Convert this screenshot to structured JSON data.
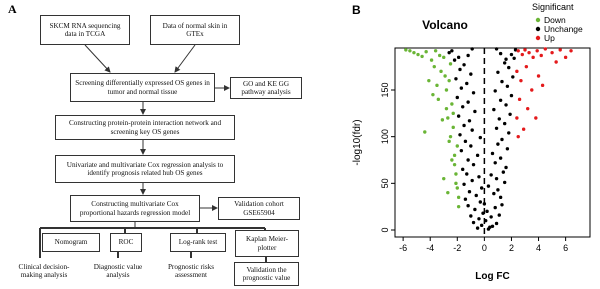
{
  "panel_a": {
    "label": "A",
    "nodes": [
      "SKCM RNA sequencing data in TCGA",
      "Data of normal skin in GTEx",
      "Screening differentially expressed OS genes in tumor and normal tissue",
      "GO and KE GG pathway analysis",
      "Constructing protein-protein interaction network and screening key OS genes",
      "Univariate and multivariate Cox regression analysis to identify prognosis related hub OS genes",
      "Constructing multivariate Cox proportional hazards regression model",
      "Validation cohort GSE65904",
      "Nomogram",
      "ROC",
      "Log-rank test",
      "Kaplan Meier-plotter",
      "Clinical decision-making analysis",
      "Diagnostic value analysis",
      "Prognostic risks assessment",
      "Validation the prognostic value"
    ]
  },
  "chart_data": {
    "type": "scatter",
    "panel_label": "B",
    "title": "Volcano",
    "x_label": "Log FC",
    "y_label": "-log10(fdr)",
    "legend_title": "Significant",
    "legend": "top-right",
    "vline": 0,
    "xlim": [
      -6.6,
      7.8
    ],
    "xticks": [
      -6,
      -4,
      -2,
      0,
      2,
      4,
      6
    ],
    "ylim": [
      -7.5,
      195
    ],
    "yticks": [
      0,
      50,
      100,
      150
    ],
    "series": [
      {
        "name": "Down",
        "color": "#6ab536",
        "x": [
          -5.8,
          -5.5,
          -5.2,
          -4.9,
          -4.6,
          -4.3,
          -4.1,
          -3.9,
          -3.7,
          -3.5,
          -3.4,
          -3.2,
          -3.1,
          -3.0,
          -2.9,
          -2.8,
          -2.7,
          -2.6,
          -2.5,
          -2.4,
          -2.3,
          -2.2,
          -2.1,
          -2.0,
          -1.9,
          -3.6,
          -3.3,
          -2.8,
          -2.5,
          -2.2,
          -4.4,
          -3.8,
          -2.6,
          -2.3,
          -2.0,
          -3.0,
          -2.7,
          -2.4,
          -2.1,
          -1.9
        ],
        "values": [
          193,
          192,
          190,
          188,
          186,
          191,
          160,
          182,
          175,
          155,
          140,
          170,
          118,
          185,
          165,
          150,
          120,
          95,
          178,
          135,
          110,
          80,
          60,
          45,
          35,
          192,
          187,
          130,
          100,
          70,
          105,
          145,
          160,
          125,
          90,
          55,
          40,
          75,
          50,
          25
        ]
      },
      {
        "name": "Unchange",
        "color": "#000000",
        "x": [
          -0.5,
          0.3,
          -0.2,
          0.6,
          -0.8,
          0.9,
          0.1,
          -0.4,
          0.5,
          -1.0,
          1.1,
          -0.1,
          0.2,
          -0.7,
          0.8,
          -1.2,
          1.3,
          0.0,
          -0.3,
          0.4,
          -1.4,
          1.2,
          -0.6,
          0.7,
          -1.1,
          1.0,
          -0.2,
          0.3,
          -1.5,
          1.5,
          -0.9,
          0.9,
          -0.4,
          0.5,
          -1.3,
          1.4,
          -1.6,
          1.6,
          -0.8,
          0.8,
          -1.2,
          1.2,
          -0.5,
          0.6,
          -1.7,
          1.7,
          -1.0,
          1.0,
          -1.4,
          1.3,
          -0.3,
          -1.8,
          1.8,
          -0.9,
          0.9,
          -1.5,
          1.5,
          -1.1,
          1.1,
          -1.9,
          1.9,
          -0.7,
          0.7,
          -1.6,
          1.6,
          -1.2,
          1.2,
          -2.0,
          2.0,
          -0.8,
          0.8,
          -1.7,
          1.7,
          -1.3,
          1.3,
          -2.1,
          2.1,
          -1.0,
          1.0,
          -1.8,
          1.8,
          -1.5,
          1.5,
          -2.2,
          2.2,
          -1.2,
          1.2,
          -2.4,
          2.3,
          -0.9,
          0.9,
          -2.6,
          2.0,
          -1.9,
          1.6
        ],
        "values": [
          2,
          1,
          5,
          4,
          8,
          7,
          10,
          12,
          14,
          15,
          16,
          18,
          20,
          22,
          24,
          26,
          27,
          28,
          30,
          3,
          33,
          35,
          37,
          39,
          41,
          43,
          45,
          47,
          49,
          51,
          53,
          55,
          57,
          59,
          60,
          62,
          65,
          67,
          70,
          72,
          75,
          77,
          80,
          82,
          85,
          87,
          90,
          92,
          95,
          97,
          99,
          102,
          104,
          107,
          109,
          112,
          114,
          117,
          119,
          122,
          124,
          127,
          129,
          132,
          134,
          137,
          139,
          142,
          144,
          147,
          149,
          152,
          154,
          157,
          159,
          162,
          164,
          167,
          169,
          172,
          174,
          177,
          179,
          182,
          184,
          187,
          189,
          192,
          193,
          194,
          194,
          190,
          188,
          185,
          183
        ]
      },
      {
        "name": "Up",
        "color": "#e41a1c",
        "x": [
          2.5,
          2.8,
          3.0,
          3.3,
          3.6,
          3.9,
          4.2,
          4.5,
          5.0,
          5.6,
          6.4,
          2.4,
          2.7,
          3.1,
          3.5,
          4.0,
          2.6,
          3.2,
          2.4,
          4.3,
          3.8,
          2.9,
          6.0,
          5.3,
          2.5
        ],
        "values": [
          192,
          188,
          193,
          190,
          185,
          192,
          187,
          194,
          190,
          193,
          192,
          170,
          160,
          175,
          150,
          165,
          140,
          130,
          120,
          155,
          120,
          108,
          185,
          180,
          100
        ]
      }
    ]
  }
}
